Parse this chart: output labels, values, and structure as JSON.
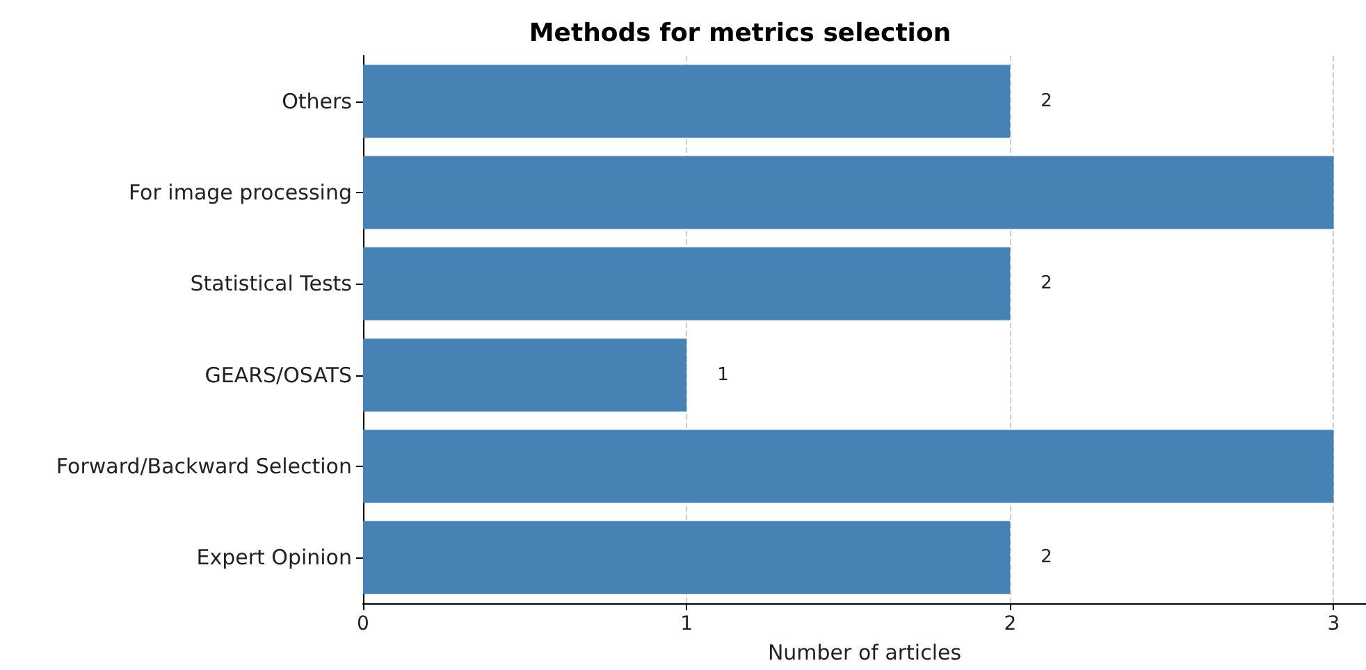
{
  "chart_data": {
    "type": "bar",
    "orientation": "horizontal",
    "title": "Methods for metrics selection",
    "xlabel": "Number of articles",
    "categories": [
      "Others",
      "For image processing",
      "Statistical Tests",
      "GEARS/OSATS",
      "Forward/Backward Selection",
      "Expert Opinion"
    ],
    "values": [
      2,
      3,
      2,
      1,
      3,
      2
    ],
    "value_labels": [
      "2",
      null,
      "2",
      "1",
      null,
      "2"
    ],
    "color": "#4682b4",
    "xlim": [
      0,
      3.1
    ],
    "xticks": [
      0,
      1,
      2,
      3
    ],
    "grid": "x"
  }
}
